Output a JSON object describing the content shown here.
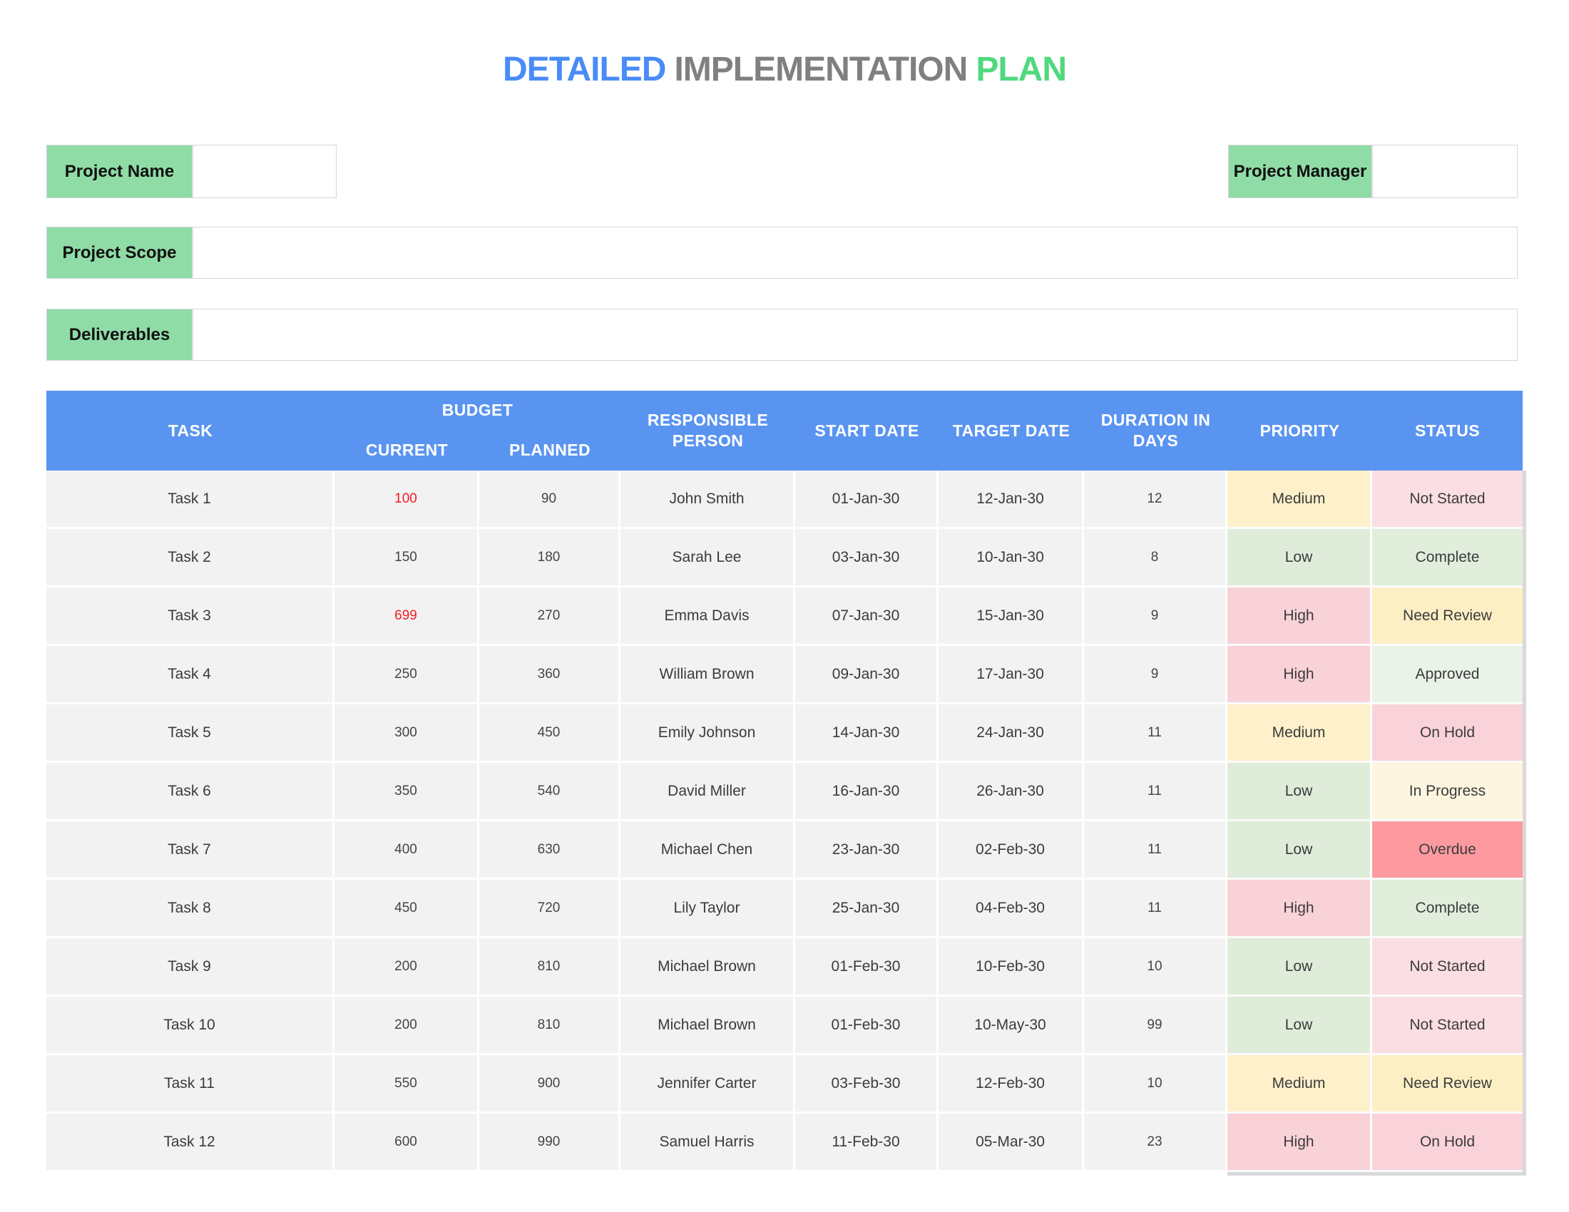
{
  "title": {
    "parts": [
      {
        "text": "DETAILED",
        "color": "#4a8cf7"
      },
      {
        "text": "IMPLEMENTATION",
        "color": "#808080"
      },
      {
        "text": "PLAN",
        "color": "#50d87f"
      }
    ]
  },
  "fields": {
    "project_name": {
      "label": "Project Name",
      "value": ""
    },
    "project_manager": {
      "label": "Project Manager",
      "value": ""
    },
    "project_scope": {
      "label": "Project Scope",
      "value": ""
    },
    "deliverables": {
      "label": "Deliverables",
      "value": ""
    }
  },
  "colors": {
    "label_green": "#8fdca7",
    "header_blue": "#5a94f1",
    "row_gray": "#f2f2f2",
    "over_budget_red": "#ee1c25",
    "priority": {
      "High": "#f9d2d8",
      "Medium": "#fdf0ca",
      "Low": "#e0ecda"
    },
    "status": {
      "Not Started": "#fbdee3",
      "Complete": "#e1eedc",
      "Need Review": "#fcefc4",
      "Approved": "#eaf3e7",
      "On Hold": "#f9d3d9",
      "In Progress": "#fdf5df",
      "Overdue": "#fd9aa0"
    }
  },
  "table": {
    "headers": {
      "task": "TASK",
      "budget_group": "BUDGET",
      "budget_current": "CURRENT",
      "budget_planned": "PLANNED",
      "responsible": "RESPONSIBLE PERSON",
      "start": "START DATE",
      "target": "TARGET DATE",
      "duration": "DURATION IN DAYS",
      "priority": "PRIORITY",
      "status": "STATUS"
    },
    "rows": [
      {
        "task": "Task 1",
        "current": "100",
        "current_red": true,
        "planned": "90",
        "person": "John Smith",
        "start": "01-Jan-30",
        "target": "12-Jan-30",
        "duration": "12",
        "priority": "Medium",
        "status": "Not Started"
      },
      {
        "task": "Task 2",
        "current": "150",
        "current_red": false,
        "planned": "180",
        "person": "Sarah Lee",
        "start": "03-Jan-30",
        "target": "10-Jan-30",
        "duration": "8",
        "priority": "Low",
        "status": "Complete"
      },
      {
        "task": "Task 3",
        "current": "699",
        "current_red": true,
        "planned": "270",
        "person": "Emma Davis",
        "start": "07-Jan-30",
        "target": "15-Jan-30",
        "duration": "9",
        "priority": "High",
        "status": "Need Review"
      },
      {
        "task": "Task 4",
        "current": "250",
        "current_red": false,
        "planned": "360",
        "person": "William Brown",
        "start": "09-Jan-30",
        "target": "17-Jan-30",
        "duration": "9",
        "priority": "High",
        "status": "Approved"
      },
      {
        "task": "Task 5",
        "current": "300",
        "current_red": false,
        "planned": "450",
        "person": "Emily Johnson",
        "start": "14-Jan-30",
        "target": "24-Jan-30",
        "duration": "11",
        "priority": "Medium",
        "status": "On Hold"
      },
      {
        "task": "Task 6",
        "current": "350",
        "current_red": false,
        "planned": "540",
        "person": "David Miller",
        "start": "16-Jan-30",
        "target": "26-Jan-30",
        "duration": "11",
        "priority": "Low",
        "status": "In Progress"
      },
      {
        "task": "Task 7",
        "current": "400",
        "current_red": false,
        "planned": "630",
        "person": "Michael Chen",
        "start": "23-Jan-30",
        "target": "02-Feb-30",
        "duration": "11",
        "priority": "Low",
        "status": "Overdue"
      },
      {
        "task": "Task 8",
        "current": "450",
        "current_red": false,
        "planned": "720",
        "person": "Lily Taylor",
        "start": "25-Jan-30",
        "target": "04-Feb-30",
        "duration": "11",
        "priority": "High",
        "status": "Complete"
      },
      {
        "task": "Task 9",
        "current": "200",
        "current_red": false,
        "planned": "810",
        "person": "Michael Brown",
        "start": "01-Feb-30",
        "target": "10-Feb-30",
        "duration": "10",
        "priority": "Low",
        "status": "Not Started"
      },
      {
        "task": "Task 10",
        "current": "200",
        "current_red": false,
        "planned": "810",
        "person": "Michael Brown",
        "start": "01-Feb-30",
        "target": "10-May-30",
        "duration": "99",
        "priority": "Low",
        "status": "Not Started"
      },
      {
        "task": "Task 11",
        "current": "550",
        "current_red": false,
        "planned": "900",
        "person": "Jennifer Carter",
        "start": "03-Feb-30",
        "target": "12-Feb-30",
        "duration": "10",
        "priority": "Medium",
        "status": "Need Review"
      },
      {
        "task": "Task 12",
        "current": "600",
        "current_red": false,
        "planned": "990",
        "person": "Samuel Harris",
        "start": "11-Feb-30",
        "target": "05-Mar-30",
        "duration": "23",
        "priority": "High",
        "status": "On Hold"
      }
    ]
  }
}
